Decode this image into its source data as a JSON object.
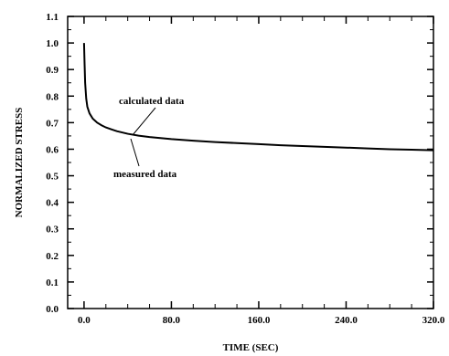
{
  "chart_data": {
    "type": "line",
    "title": "",
    "xlabel": "TIME (SEC)",
    "ylabel": "NORMALIZED STRESS",
    "xlim": [
      -15,
      320
    ],
    "ylim": [
      0,
      1.1
    ],
    "x_ticks": [
      0,
      80,
      160,
      240,
      320
    ],
    "x_tick_labels": [
      "0.0",
      "80.0",
      "160.0",
      "240.0",
      "320.0"
    ],
    "y_ticks": [
      0,
      0.1,
      0.2,
      0.3,
      0.4,
      0.5,
      0.6,
      0.7,
      0.8,
      0.9,
      1.0,
      1.1
    ],
    "y_tick_labels": [
      "0.0",
      "0.1",
      "0.2",
      "0.3",
      "0.4",
      "0.5",
      "0.6",
      "0.7",
      "0.8",
      "0.9",
      "1.0",
      "1.1"
    ],
    "grid": false,
    "series": [
      {
        "x": [
          0,
          0.5,
          1,
          2,
          3,
          5,
          8,
          12,
          16,
          20,
          25,
          30,
          40,
          50,
          60,
          80,
          100,
          120,
          140,
          160,
          180,
          200,
          220,
          240,
          260,
          280,
          300,
          320
        ],
        "values": [
          1.0,
          0.92,
          0.85,
          0.79,
          0.76,
          0.735,
          0.715,
          0.7,
          0.69,
          0.682,
          0.675,
          0.668,
          0.658,
          0.651,
          0.646,
          0.638,
          0.632,
          0.627,
          0.623,
          0.619,
          0.615,
          0.612,
          0.609,
          0.606,
          0.603,
          0.6,
          0.598,
          0.596
        ]
      }
    ],
    "annotations": [
      {
        "text": "calculated data",
        "x": 40,
        "y": 0.655
      },
      {
        "text": "measured data",
        "x": 40,
        "y": 0.645
      }
    ]
  }
}
